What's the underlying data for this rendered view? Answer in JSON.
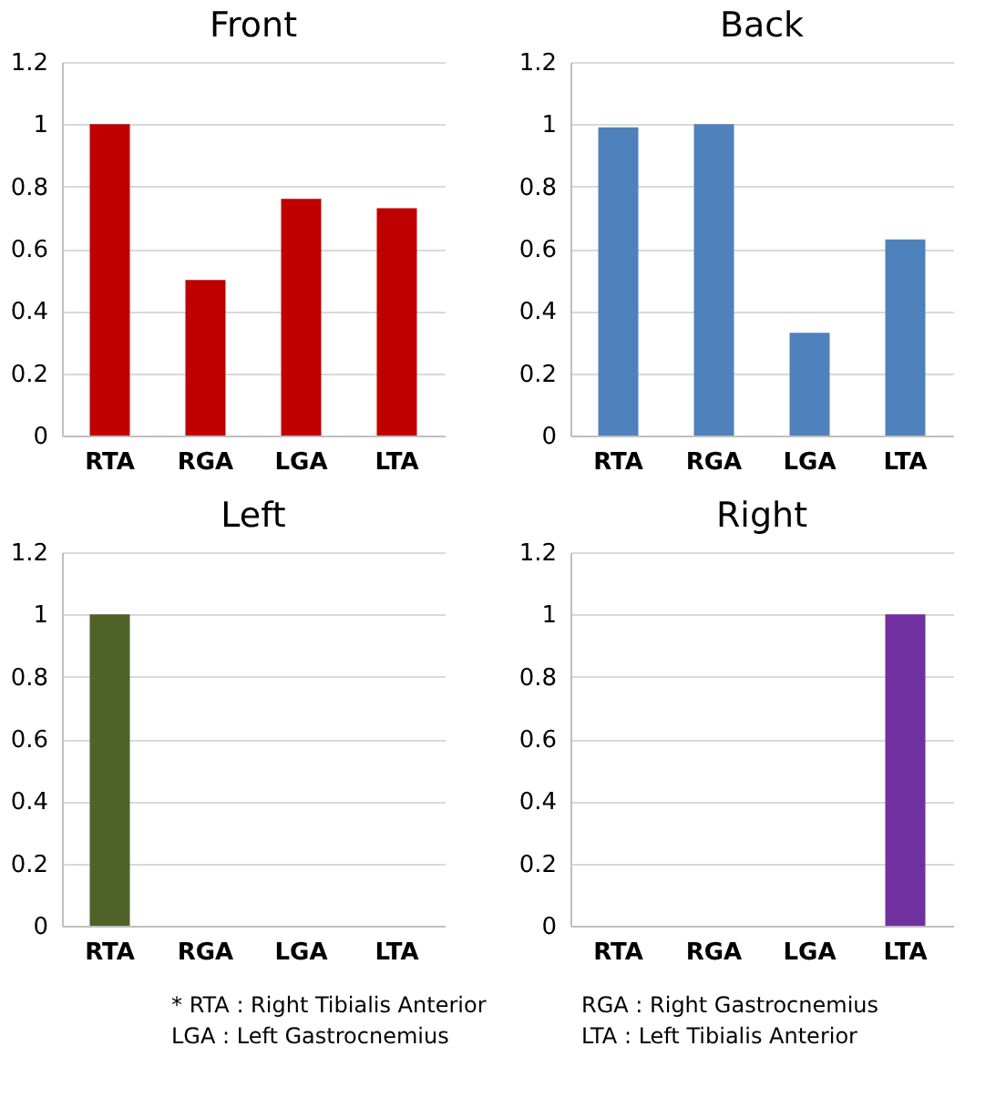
{
  "chart_data": [
    {
      "type": "bar",
      "title": "Front",
      "categories": [
        "RTA",
        "RGA",
        "LGA",
        "LTA"
      ],
      "values": [
        1,
        0.5,
        0.76,
        0.73
      ],
      "color": "#c00000",
      "ylim": [
        0,
        1.2
      ],
      "yticks": [
        0,
        0.2,
        0.4,
        0.6,
        0.8,
        1,
        1.2
      ],
      "grid": "y"
    },
    {
      "type": "bar",
      "title": "Back",
      "categories": [
        "RTA",
        "RGA",
        "LGA",
        "LTA"
      ],
      "values": [
        0.99,
        1,
        0.33,
        0.63
      ],
      "color": "#4f81bd",
      "ylim": [
        0,
        1.2
      ],
      "yticks": [
        0,
        0.2,
        0.4,
        0.6,
        0.8,
        1,
        1.2
      ],
      "grid": "y"
    },
    {
      "type": "bar",
      "title": "Left",
      "categories": [
        "RTA",
        "RGA",
        "LGA",
        "LTA"
      ],
      "values": [
        1,
        0,
        0,
        0
      ],
      "color": "#4f6228",
      "ylim": [
        0,
        1.2
      ],
      "yticks": [
        0,
        0.2,
        0.4,
        0.6,
        0.8,
        1,
        1.2
      ],
      "grid": "y"
    },
    {
      "type": "bar",
      "title": "Right",
      "categories": [
        "RTA",
        "RGA",
        "LGA",
        "LTA"
      ],
      "values": [
        0,
        0,
        0,
        1
      ],
      "color": "#7030a0",
      "ylim": [
        0,
        1.2
      ],
      "yticks": [
        0,
        0.2,
        0.4,
        0.6,
        0.8,
        1,
        1.2
      ],
      "grid": "y",
      "annotations": [
        "*  RTA : Right Tibialis Anterior",
        "RGA : Right Gastrocnemius",
        "LGA : Left Gastrocnemius",
        "LTA : Left Tibialis Anterior"
      ]
    }
  ]
}
